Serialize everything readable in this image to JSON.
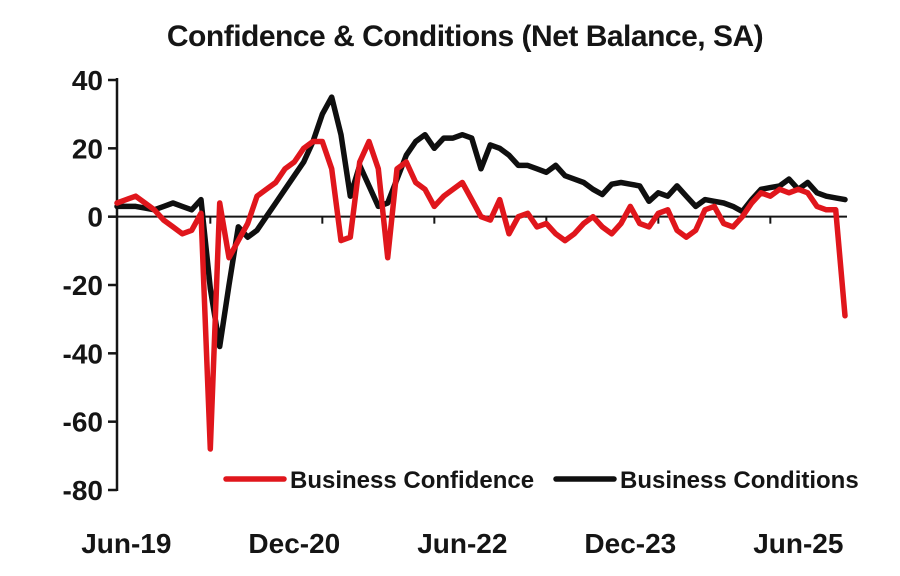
{
  "title": "Confidence & Conditions (Net Balance, SA)",
  "chart_data": {
    "type": "line",
    "title": "Confidence & Conditions (Net Balance, SA)",
    "grid": false,
    "legend_position": "bottom-inside",
    "ylim": [
      -80,
      40
    ],
    "y_ticks": [
      40,
      20,
      0,
      -20,
      -40,
      -60,
      -80
    ],
    "x_tick_labels": [
      "Jun-19",
      "Dec-20",
      "Jun-22",
      "Dec-23",
      "Jun-25"
    ],
    "x_tick_month_indices": [
      1,
      19,
      37,
      55,
      73
    ],
    "x_minor_tick_month_indices": [
      10,
      22,
      34,
      46,
      58,
      70
    ],
    "axis_color": "#151515",
    "months": [
      "May-19",
      "Jun-19",
      "Jul-19",
      "Aug-19",
      "Sep-19",
      "Oct-19",
      "Nov-19",
      "Dec-19",
      "Jan-20",
      "Feb-20",
      "Mar-20",
      "Apr-20",
      "May-20",
      "Jun-20",
      "Jul-20",
      "Aug-20",
      "Sep-20",
      "Oct-20",
      "Nov-20",
      "Dec-20",
      "Jan-21",
      "Feb-21",
      "Mar-21",
      "Apr-21",
      "May-21",
      "Jun-21",
      "Jul-21",
      "Aug-21",
      "Sep-21",
      "Oct-21",
      "Nov-21",
      "Dec-21",
      "Jan-22",
      "Feb-22",
      "Mar-22",
      "Apr-22",
      "May-22",
      "Jun-22",
      "Jul-22",
      "Aug-22",
      "Sep-22",
      "Oct-22",
      "Nov-22",
      "Dec-22",
      "Jan-23",
      "Feb-23",
      "Mar-23",
      "Apr-23",
      "May-23",
      "Jun-23",
      "Jul-23",
      "Aug-23",
      "Sep-23",
      "Oct-23",
      "Nov-23",
      "Dec-23",
      "Jan-24",
      "Feb-24",
      "Mar-24",
      "Apr-24",
      "May-24",
      "Jun-24",
      "Jul-24",
      "Aug-24",
      "Sep-24",
      "Oct-24",
      "Nov-24",
      "Dec-24",
      "Jan-25",
      "Feb-25",
      "Mar-25",
      "Apr-25",
      "May-25",
      "Jun-25",
      "Jul-25",
      "Aug-25",
      "Sep-25",
      "Oct-25",
      "Nov-25"
    ],
    "series": [
      {
        "name": "Business Confidence",
        "color": "#e0161c",
        "values": [
          4,
          5,
          6,
          4,
          2,
          -1,
          -3,
          -5,
          -4,
          1,
          -68,
          4,
          -12,
          -7,
          -2,
          6,
          8,
          10,
          14,
          16,
          20,
          22,
          22,
          14,
          -7,
          -6,
          16,
          22,
          14,
          -12,
          14,
          16,
          10,
          8,
          3,
          6,
          8,
          10,
          5,
          0,
          -1,
          5,
          -5,
          0,
          1,
          -3,
          -2,
          -5,
          -7,
          -5,
          -2,
          0,
          -3,
          -5,
          -2,
          3,
          -2,
          -3,
          1,
          2,
          -4,
          -6,
          -4,
          2,
          3,
          -2,
          -3,
          0,
          4,
          7,
          6,
          8,
          7,
          8,
          7,
          3,
          2,
          2,
          -29
        ]
      },
      {
        "name": "Business Conditions",
        "color": "#0f0f0f",
        "values": [
          3,
          3,
          3,
          2.5,
          2,
          3,
          4,
          3,
          2,
          5,
          -21,
          -38,
          -20,
          -3,
          -6,
          -4,
          0,
          4,
          8,
          12,
          16,
          22,
          30,
          35,
          24,
          6,
          15,
          9,
          3,
          4,
          11,
          18,
          22,
          24,
          20,
          23,
          23,
          24,
          23,
          14,
          21,
          20,
          18,
          15,
          15,
          14,
          13,
          15,
          12,
          11,
          10,
          8,
          6.5,
          9.5,
          10,
          9.5,
          9,
          4.5,
          7,
          6,
          9,
          6,
          3,
          5,
          4.5,
          4,
          3,
          1.5,
          5,
          8,
          8.5,
          9,
          11,
          8,
          10,
          7,
          6,
          5.5,
          5
        ]
      }
    ]
  }
}
